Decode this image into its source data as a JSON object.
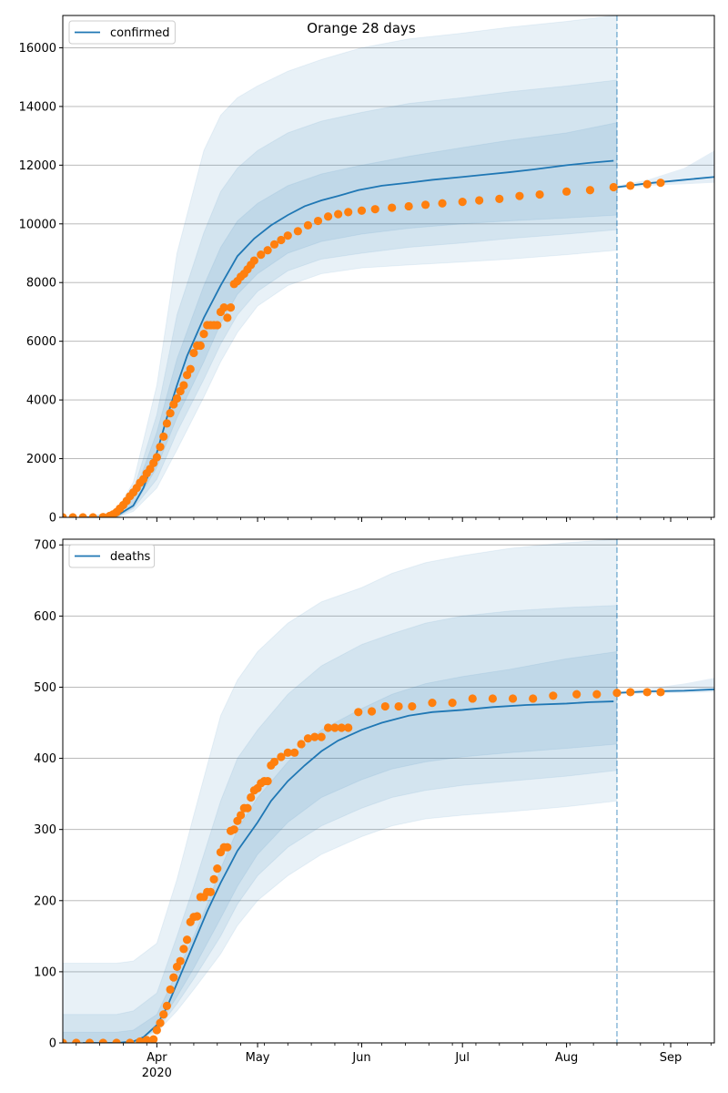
{
  "title": "Orange 28 days",
  "x_tick_labels": [
    "Apr",
    "May",
    "Jun",
    "Jul",
    "Aug",
    "Sep"
  ],
  "x_tick_dates": [
    "2020-04-01",
    "2020-05-01",
    "2020-06-01",
    "2020-07-01",
    "2020-08-01",
    "2020-09-01"
  ],
  "x_year_label": "2020",
  "colors": {
    "model": "#1f77b4",
    "observed": "#ff7f0e",
    "band": "#1f77b4",
    "grid": "#b0b0b0"
  },
  "chart_data": [
    {
      "type": "line",
      "name": "confirmed",
      "legend": "top-left",
      "xlim": [
        "2020-03-04",
        "2020-09-14"
      ],
      "ylim": [
        0,
        17100
      ],
      "y_ticks": [
        0,
        2000,
        4000,
        6000,
        8000,
        10000,
        12000,
        14000,
        16000
      ],
      "grid": "horizontal",
      "forecast_marker_date": "2020-08-16",
      "model": {
        "x": [
          "2020-03-10",
          "2020-03-15",
          "2020-03-20",
          "2020-03-25",
          "2020-03-28",
          "2020-04-01",
          "2020-04-04",
          "2020-04-07",
          "2020-04-10",
          "2020-04-15",
          "2020-04-20",
          "2020-04-25",
          "2020-04-30",
          "2020-05-05",
          "2020-05-10",
          "2020-05-15",
          "2020-05-20",
          "2020-05-25",
          "2020-05-31",
          "2020-06-07",
          "2020-06-15",
          "2020-06-22",
          "2020-07-01",
          "2020-07-08",
          "2020-07-15",
          "2020-07-22",
          "2020-08-01",
          "2020-08-08",
          "2020-08-15"
        ],
        "y": [
          0,
          0,
          50,
          400,
          1000,
          2200,
          3400,
          4500,
          5500,
          6800,
          7900,
          8900,
          9500,
          9950,
          10300,
          10600,
          10800,
          10950,
          11150,
          11300,
          11400,
          11500,
          11600,
          11680,
          11760,
          11850,
          12000,
          12080,
          12150
        ]
      },
      "projection": {
        "x": [
          "2020-08-16",
          "2020-08-25",
          "2020-09-05",
          "2020-09-14"
        ],
        "y": [
          11250,
          11380,
          11500,
          11600
        ]
      },
      "bands": [
        {
          "x": [
            "2020-03-10",
            "2020-03-20",
            "2020-03-25",
            "2020-04-01",
            "2020-04-07",
            "2020-04-15",
            "2020-04-20",
            "2020-04-25",
            "2020-05-01",
            "2020-05-10",
            "2020-05-20",
            "2020-06-01",
            "2020-06-15",
            "2020-07-01",
            "2020-07-15",
            "2020-08-01",
            "2020-08-16"
          ],
          "lower": [
            0,
            0,
            200,
            1000,
            2300,
            4100,
            5300,
            6300,
            7200,
            7900,
            8300,
            8500,
            8600,
            8700,
            8800,
            8950,
            9100
          ],
          "upper": [
            0,
            200,
            1200,
            4500,
            9000,
            12500,
            13700,
            14300,
            14700,
            15200,
            15600,
            16000,
            16300,
            16500,
            16700,
            16900,
            17100
          ]
        },
        {
          "x": [
            "2020-03-10",
            "2020-03-20",
            "2020-03-25",
            "2020-04-01",
            "2020-04-07",
            "2020-04-15",
            "2020-04-20",
            "2020-04-25",
            "2020-05-01",
            "2020-05-10",
            "2020-05-20",
            "2020-06-01",
            "2020-06-15",
            "2020-07-01",
            "2020-07-15",
            "2020-08-01",
            "2020-08-16"
          ],
          "lower": [
            0,
            0,
            300,
            1300,
            2900,
            4700,
            5900,
            6900,
            7700,
            8400,
            8800,
            9000,
            9200,
            9350,
            9500,
            9650,
            9800
          ],
          "upper": [
            0,
            150,
            900,
            3500,
            6900,
            9700,
            11100,
            11900,
            12500,
            13100,
            13500,
            13800,
            14100,
            14300,
            14500,
            14700,
            14900
          ]
        },
        {
          "x": [
            "2020-03-10",
            "2020-03-20",
            "2020-03-25",
            "2020-04-01",
            "2020-04-07",
            "2020-04-15",
            "2020-04-20",
            "2020-04-25",
            "2020-05-01",
            "2020-05-10",
            "2020-05-20",
            "2020-06-01",
            "2020-06-15",
            "2020-07-01",
            "2020-07-15",
            "2020-08-01",
            "2020-08-16"
          ],
          "lower": [
            0,
            0,
            350,
            1700,
            3400,
            5300,
            6600,
            7600,
            8300,
            9000,
            9400,
            9650,
            9850,
            10000,
            10100,
            10200,
            10300
          ],
          "upper": [
            0,
            100,
            700,
            2900,
            5400,
            7900,
            9200,
            10100,
            10700,
            11300,
            11700,
            12000,
            12300,
            12600,
            12850,
            13100,
            13450
          ]
        }
      ],
      "projection_band": {
        "x": [
          "2020-08-16",
          "2020-08-25",
          "2020-09-05",
          "2020-09-14"
        ],
        "lower": [
          11200,
          11300,
          11350,
          11400
        ],
        "upper": [
          11300,
          11500,
          11900,
          12500
        ]
      },
      "observed": {
        "x": [
          "2020-03-04",
          "2020-03-07",
          "2020-03-10",
          "2020-03-13",
          "2020-03-16",
          "2020-03-18",
          "2020-03-19",
          "2020-03-20",
          "2020-03-21",
          "2020-03-22",
          "2020-03-23",
          "2020-03-24",
          "2020-03-25",
          "2020-03-26",
          "2020-03-27",
          "2020-03-28",
          "2020-03-29",
          "2020-03-30",
          "2020-03-31",
          "2020-04-01",
          "2020-04-02",
          "2020-04-03",
          "2020-04-04",
          "2020-04-05",
          "2020-04-06",
          "2020-04-07",
          "2020-04-08",
          "2020-04-09",
          "2020-04-10",
          "2020-04-11",
          "2020-04-12",
          "2020-04-13",
          "2020-04-14",
          "2020-04-15",
          "2020-04-16",
          "2020-04-17",
          "2020-04-18",
          "2020-04-19",
          "2020-04-20",
          "2020-04-21",
          "2020-04-22",
          "2020-04-23",
          "2020-04-24",
          "2020-04-25",
          "2020-04-26",
          "2020-04-27",
          "2020-04-28",
          "2020-04-29",
          "2020-04-30",
          "2020-05-02",
          "2020-05-04",
          "2020-05-06",
          "2020-05-08",
          "2020-05-10",
          "2020-05-13",
          "2020-05-16",
          "2020-05-19",
          "2020-05-22",
          "2020-05-25",
          "2020-05-28",
          "2020-06-01",
          "2020-06-05",
          "2020-06-10",
          "2020-06-15",
          "2020-06-20",
          "2020-06-25",
          "2020-07-01",
          "2020-07-06",
          "2020-07-12",
          "2020-07-18",
          "2020-07-24",
          "2020-08-01",
          "2020-08-08",
          "2020-08-15",
          "2020-08-20",
          "2020-08-25",
          "2020-08-29"
        ],
        "y": [
          0,
          0,
          0,
          0,
          10,
          50,
          100,
          180,
          300,
          420,
          560,
          720,
          850,
          1000,
          1180,
          1300,
          1500,
          1650,
          1850,
          2050,
          2400,
          2750,
          3200,
          3550,
          3850,
          4050,
          4300,
          4500,
          4850,
          5050,
          5600,
          5850,
          5850,
          6250,
          6550,
          6550,
          6550,
          6550,
          7000,
          7150,
          6800,
          7150,
          7950,
          8050,
          8200,
          8300,
          8450,
          8600,
          8750,
          8950,
          9100,
          9300,
          9450,
          9600,
          9750,
          9950,
          10100,
          10250,
          10330,
          10400,
          10450,
          10500,
          10550,
          10600,
          10650,
          10700,
          10750,
          10800,
          10850,
          10950,
          11000,
          11100,
          11150,
          11250,
          11300,
          11350,
          11400
        ]
      }
    },
    {
      "type": "line",
      "name": "deaths",
      "legend": "top-left",
      "xlim": [
        "2020-03-04",
        "2020-09-14"
      ],
      "ylim": [
        0,
        708
      ],
      "y_ticks": [
        0,
        100,
        200,
        300,
        400,
        500,
        600,
        700
      ],
      "grid": "horizontal",
      "forecast_marker_date": "2020-08-16",
      "model": {
        "x": [
          "2020-03-10",
          "2020-03-20",
          "2020-03-25",
          "2020-03-28",
          "2020-04-01",
          "2020-04-04",
          "2020-04-08",
          "2020-04-12",
          "2020-04-16",
          "2020-04-20",
          "2020-04-25",
          "2020-05-01",
          "2020-05-05",
          "2020-05-10",
          "2020-05-15",
          "2020-05-20",
          "2020-05-25",
          "2020-06-01",
          "2020-06-07",
          "2020-06-15",
          "2020-06-22",
          "2020-07-01",
          "2020-07-10",
          "2020-07-20",
          "2020-08-01",
          "2020-08-08",
          "2020-08-15"
        ],
        "y": [
          0,
          0,
          2,
          8,
          25,
          50,
          95,
          140,
          185,
          225,
          270,
          310,
          340,
          368,
          390,
          410,
          425,
          440,
          450,
          460,
          465,
          468,
          472,
          475,
          477,
          479,
          480
        ]
      },
      "projection": {
        "x": [
          "2020-08-16",
          "2020-08-25",
          "2020-09-05",
          "2020-09-14"
        ],
        "y": [
          492,
          494,
          495,
          497
        ]
      },
      "bands": [
        {
          "x": [
            "2020-03-04",
            "2020-03-20",
            "2020-03-25",
            "2020-04-01",
            "2020-04-07",
            "2020-04-12",
            "2020-04-16",
            "2020-04-20",
            "2020-04-25",
            "2020-05-01",
            "2020-05-10",
            "2020-05-20",
            "2020-06-01",
            "2020-06-10",
            "2020-06-20",
            "2020-07-01",
            "2020-07-15",
            "2020-08-01",
            "2020-08-16"
          ],
          "lower": [
            0,
            0,
            0,
            15,
            45,
            75,
            100,
            125,
            165,
            200,
            235,
            265,
            290,
            305,
            315,
            320,
            325,
            332,
            340
          ],
          "upper": [
            112,
            112,
            115,
            140,
            230,
            320,
            390,
            460,
            510,
            550,
            590,
            620,
            640,
            660,
            675,
            685,
            695,
            703,
            708
          ]
        },
        {
          "x": [
            "2020-03-04",
            "2020-03-20",
            "2020-03-25",
            "2020-04-01",
            "2020-04-07",
            "2020-04-12",
            "2020-04-16",
            "2020-04-20",
            "2020-04-25",
            "2020-05-01",
            "2020-05-10",
            "2020-05-20",
            "2020-06-01",
            "2020-06-10",
            "2020-06-20",
            "2020-07-01",
            "2020-07-15",
            "2020-08-01",
            "2020-08-16"
          ],
          "lower": [
            0,
            0,
            0,
            18,
            55,
            90,
            120,
            150,
            195,
            235,
            275,
            305,
            330,
            345,
            355,
            362,
            368,
            375,
            383
          ],
          "upper": [
            40,
            40,
            45,
            70,
            150,
            220,
            280,
            340,
            400,
            440,
            490,
            530,
            560,
            575,
            590,
            600,
            607,
            612,
            615
          ]
        },
        {
          "x": [
            "2020-03-04",
            "2020-03-20",
            "2020-03-25",
            "2020-04-01",
            "2020-04-07",
            "2020-04-12",
            "2020-04-16",
            "2020-04-20",
            "2020-04-25",
            "2020-05-01",
            "2020-05-10",
            "2020-05-20",
            "2020-06-01",
            "2020-06-10",
            "2020-06-20",
            "2020-07-01",
            "2020-07-15",
            "2020-08-01",
            "2020-08-16"
          ],
          "lower": [
            0,
            0,
            0,
            20,
            65,
            105,
            140,
            175,
            220,
            265,
            310,
            345,
            370,
            385,
            395,
            402,
            408,
            414,
            420
          ],
          "upper": [
            15,
            15,
            18,
            40,
            100,
            150,
            195,
            245,
            300,
            345,
            395,
            440,
            470,
            490,
            505,
            515,
            525,
            540,
            550
          ]
        }
      ],
      "projection_band": {
        "x": [
          "2020-08-16",
          "2020-08-25",
          "2020-09-05",
          "2020-09-14"
        ],
        "lower": [
          490,
          491,
          492,
          493
        ],
        "upper": [
          494,
          498,
          505,
          513
        ]
      },
      "observed": {
        "x": [
          "2020-03-04",
          "2020-03-08",
          "2020-03-12",
          "2020-03-16",
          "2020-03-20",
          "2020-03-24",
          "2020-03-27",
          "2020-03-29",
          "2020-03-31",
          "2020-04-01",
          "2020-04-02",
          "2020-04-03",
          "2020-04-04",
          "2020-04-05",
          "2020-04-06",
          "2020-04-07",
          "2020-04-08",
          "2020-04-09",
          "2020-04-10",
          "2020-04-11",
          "2020-04-12",
          "2020-04-13",
          "2020-04-14",
          "2020-04-15",
          "2020-04-16",
          "2020-04-17",
          "2020-04-18",
          "2020-04-19",
          "2020-04-20",
          "2020-04-21",
          "2020-04-22",
          "2020-04-23",
          "2020-04-24",
          "2020-04-25",
          "2020-04-26",
          "2020-04-27",
          "2020-04-28",
          "2020-04-29",
          "2020-04-30",
          "2020-05-01",
          "2020-05-02",
          "2020-05-03",
          "2020-05-04",
          "2020-05-05",
          "2020-05-06",
          "2020-05-08",
          "2020-05-10",
          "2020-05-12",
          "2020-05-14",
          "2020-05-16",
          "2020-05-18",
          "2020-05-20",
          "2020-05-22",
          "2020-05-24",
          "2020-05-26",
          "2020-05-28",
          "2020-05-31",
          "2020-06-04",
          "2020-06-08",
          "2020-06-12",
          "2020-06-16",
          "2020-06-22",
          "2020-06-28",
          "2020-07-04",
          "2020-07-10",
          "2020-07-16",
          "2020-07-22",
          "2020-07-28",
          "2020-08-04",
          "2020-08-10",
          "2020-08-16",
          "2020-08-20",
          "2020-08-25",
          "2020-08-29"
        ],
        "y": [
          0,
          0,
          0,
          0,
          0,
          0,
          2,
          4,
          5,
          18,
          28,
          40,
          52,
          75,
          92,
          107,
          115,
          132,
          145,
          170,
          177,
          178,
          205,
          205,
          212,
          212,
          230,
          245,
          268,
          275,
          275,
          298,
          300,
          312,
          320,
          330,
          330,
          345,
          355,
          358,
          365,
          368,
          368,
          390,
          395,
          402,
          408,
          408,
          420,
          428,
          430,
          430,
          443,
          443,
          443,
          443,
          465,
          466,
          473,
          473,
          473,
          478,
          478,
          484,
          484,
          484,
          484,
          488,
          490,
          490,
          492,
          493,
          493,
          493
        ]
      }
    }
  ]
}
